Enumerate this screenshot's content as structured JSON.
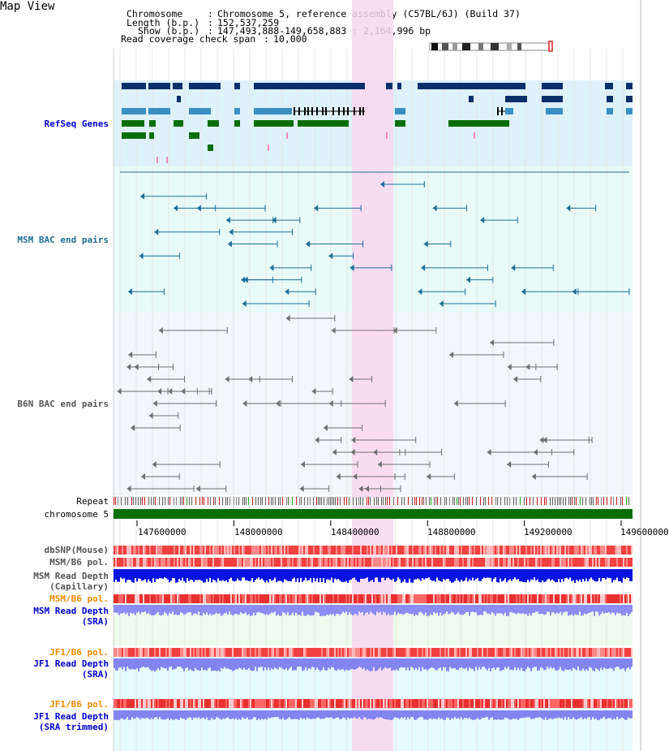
{
  "title": "Map View",
  "header": {
    "chromosome_label": "Chromosome",
    "chromosome_value": "Chromosome 5, reference assembly (C57BL/6J) (Build 37)",
    "length_label": "Length (b.p.)",
    "length_value": "152,537,259",
    "show_label": "Show (b.p.)",
    "show_value": "147,493,888-149,658,883 : 2,164,996 bp",
    "coverage_label": "Read coverage check span",
    "coverage_value": "10,000"
  },
  "tracks": {
    "refseq": "RefSeq Genes",
    "msm_bac": "MSM BAC end pairs",
    "b6n_bac": "B6N BAC end pairs",
    "repeat": "Repeat",
    "chromosome": "chromosome 5",
    "dbsnp": "dbSNP(Mouse)",
    "msm_b6_pol": "MSM/B6 pol.",
    "msm_depth_cap_1": "MSM Read Depth",
    "msm_depth_cap_2": "(Capillary)",
    "msm_b6_pol_2": "MSM/B6 pol.",
    "msm_depth_sra_1": "MSM Read Depth",
    "msm_depth_sra_2": "(SRA)",
    "jf1_b6_pol": "JF1/B6 pol.",
    "jf1_depth_sra_1": "JF1 Read Depth",
    "jf1_depth_sra_2": "(SRA)",
    "jf1_b6_pol_2": "JF1/B6 pol.",
    "jf1_depth_trim_1": "JF1 Read Depth",
    "jf1_depth_trim_2": "(SRA trimmed)"
  },
  "ruler": {
    "ticks": [
      "147600000",
      "148000000",
      "148400000",
      "148800000",
      "149200000",
      "149600000"
    ]
  },
  "colors": {
    "refseq_bg": "#def2fb",
    "msm_bg": "#e8fbf8",
    "b6n_bg": "#f3f6fb",
    "highlight": "#f9d7f0",
    "chromosome": "#086e08",
    "refseq_label": "#0000cc",
    "msm_label": "#1e6e96",
    "b6n_label": "#555555",
    "pol_orange": "#ee8a00"
  }
}
